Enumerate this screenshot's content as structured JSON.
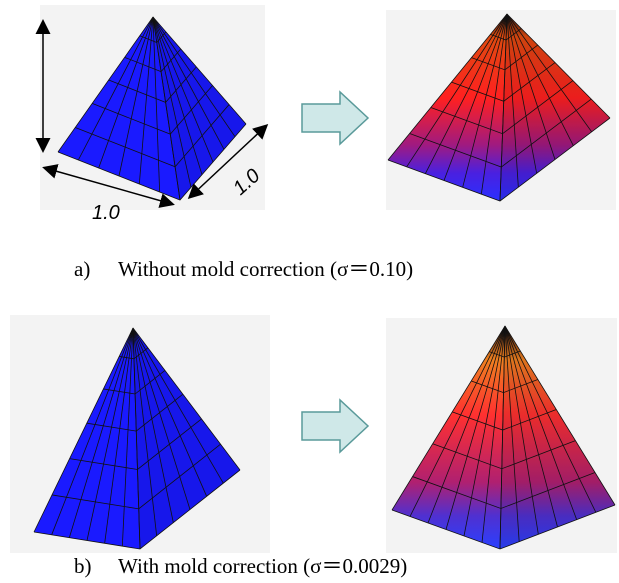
{
  "panels": [
    {
      "label": "a)",
      "caption": "Without mold correction (σ＝0.10)"
    },
    {
      "label": "b)",
      "caption": "With mold correction (σ＝0.0029)"
    }
  ],
  "dimensions": [
    "1.0",
    "1.0"
  ]
}
